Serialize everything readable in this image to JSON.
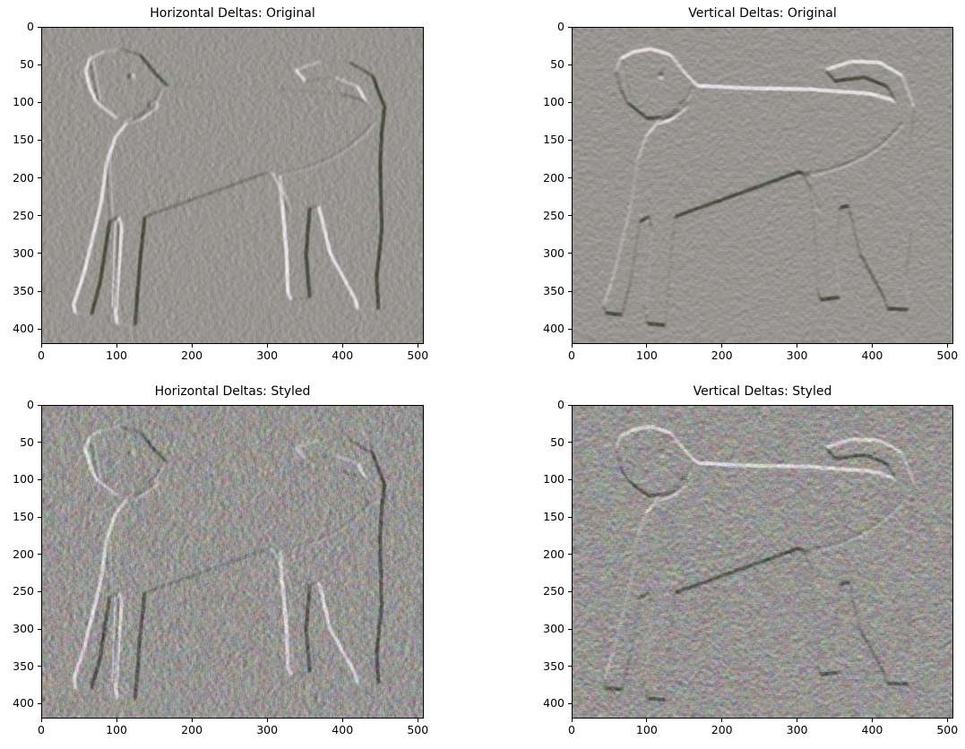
{
  "figure": {
    "background": "#ffffff",
    "text_color": "#000000",
    "layout": "2x2 grid of image subplots"
  },
  "chart_data": [
    {
      "type": "heatmap",
      "title": "Horizontal Deltas: Original",
      "delta_axis": "horizontal",
      "variant": "original",
      "xticks": [
        "0",
        "100",
        "200",
        "300",
        "400",
        "500"
      ],
      "yticks": [
        "0",
        "50",
        "100",
        "150",
        "200",
        "250",
        "300",
        "350",
        "400"
      ],
      "xlim": [
        0,
        508
      ],
      "ylim": [
        420,
        0
      ],
      "base_color": "#989590",
      "description": "Neutral-gray embossed relief of a standing dog (head turned toward viewer, tail curled over back); horizontal pixel-difference map with subtle light/dark edge ridges and faint pink/green fringes"
    },
    {
      "type": "heatmap",
      "title": "Vertical Deltas: Original",
      "delta_axis": "vertical",
      "variant": "original",
      "xticks": [
        "0",
        "100",
        "200",
        "300",
        "400",
        "500"
      ],
      "yticks": [
        "0",
        "50",
        "100",
        "150",
        "200",
        "250",
        "300",
        "350",
        "400"
      ],
      "xlim": [
        0,
        508
      ],
      "ylim": [
        420,
        0
      ],
      "base_color": "#a09d98",
      "description": "Neutral-gray embossed relief of the same standing dog; vertical pixel-difference map with light top edges, dark bottom edges and purple/green contour fringes"
    },
    {
      "type": "heatmap",
      "title": "Horizontal Deltas: Styled",
      "delta_axis": "horizontal",
      "variant": "styled",
      "xticks": [
        "0",
        "100",
        "200",
        "300",
        "400",
        "500"
      ],
      "yticks": [
        "0",
        "50",
        "100",
        "150",
        "200",
        "250",
        "300",
        "350",
        "400"
      ],
      "xlim": [
        0,
        508
      ],
      "ylim": [
        420,
        0
      ],
      "base_color": "#969390",
      "description": "Noisy multicolored (RGB confetti) delta map of the styled image; dog silhouette faintly embossed under chaotic diagonal streaks"
    },
    {
      "type": "heatmap",
      "title": "Vertical Deltas: Styled",
      "delta_axis": "vertical",
      "variant": "styled",
      "xticks": [
        "0",
        "100",
        "200",
        "300",
        "400",
        "500"
      ],
      "yticks": [
        "0",
        "50",
        "100",
        "150",
        "200",
        "250",
        "300",
        "350",
        "400"
      ],
      "xlim": [
        0,
        508
      ],
      "ylim": [
        420,
        0
      ],
      "base_color": "#969390",
      "description": "Noisy multicolored vertical delta map of the styled image; dog silhouette faintly embossed under chaotic colorful texture"
    }
  ]
}
